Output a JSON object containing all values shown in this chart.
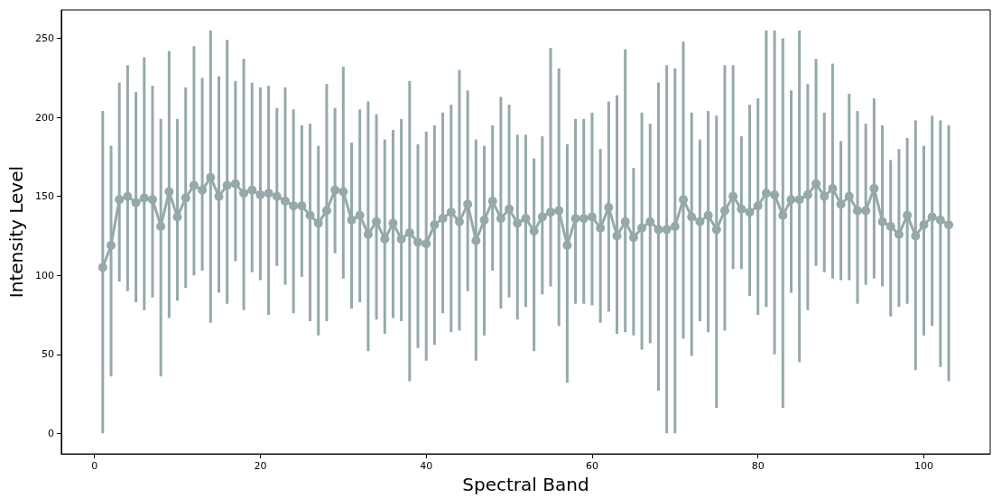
{
  "chart_data": {
    "type": "line",
    "xlabel": "Spectral Band",
    "ylabel": "Intensity Level",
    "x": [
      1,
      2,
      3,
      4,
      5,
      6,
      7,
      8,
      9,
      10,
      11,
      12,
      13,
      14,
      15,
      16,
      17,
      18,
      19,
      20,
      21,
      22,
      23,
      24,
      25,
      26,
      27,
      28,
      29,
      30,
      31,
      32,
      33,
      34,
      35,
      36,
      37,
      38,
      39,
      40,
      41,
      42,
      43,
      44,
      45,
      46,
      47,
      48,
      49,
      50,
      51,
      52,
      53,
      54,
      55,
      56,
      57,
      58,
      59,
      60,
      61,
      62,
      63,
      64,
      65,
      66,
      67,
      68,
      69,
      70,
      71,
      72,
      73,
      74,
      75,
      76,
      77,
      78,
      79,
      80,
      81,
      82,
      83,
      84,
      85,
      86,
      87,
      88,
      89,
      90,
      91,
      92,
      93,
      94,
      95,
      96,
      97,
      98,
      99,
      100,
      101,
      102,
      103
    ],
    "series": [
      {
        "color": "#95a9ab",
        "marker": "circle",
        "line_style": "solid",
        "values": [
          105,
          119,
          148,
          150,
          146,
          149,
          148,
          131,
          153,
          137,
          149,
          157,
          154,
          162,
          150,
          157,
          158,
          152,
          154,
          151,
          152,
          150,
          147,
          144,
          144,
          138,
          133,
          141,
          154,
          153,
          135,
          138,
          126,
          134,
          123,
          133,
          123,
          127,
          121,
          120,
          132,
          136,
          140,
          134,
          145,
          122,
          135,
          147,
          136,
          142,
          133,
          136,
          128,
          137,
          140,
          141,
          119,
          136,
          136,
          137,
          130,
          143,
          125,
          134,
          124,
          130,
          134,
          129,
          129,
          131,
          148,
          137,
          134,
          138,
          129,
          141,
          150,
          142,
          140,
          144,
          152,
          151,
          138,
          148,
          148,
          151,
          158,
          150,
          155,
          145,
          150,
          141,
          141,
          155,
          134,
          131,
          126,
          138,
          125,
          132,
          137,
          135,
          132
        ],
        "errors": [
          [
            0,
            204
          ],
          [
            36,
            182
          ],
          [
            96,
            222
          ],
          [
            90,
            233
          ],
          [
            83,
            216
          ],
          [
            78,
            238
          ],
          [
            86,
            220
          ],
          [
            36,
            199
          ],
          [
            73,
            242
          ],
          [
            84,
            199
          ],
          [
            92,
            219
          ],
          [
            100,
            245
          ],
          [
            103,
            225
          ],
          [
            70,
            255
          ],
          [
            89,
            226
          ],
          [
            82,
            249
          ],
          [
            109,
            223
          ],
          [
            78,
            237
          ],
          [
            102,
            222
          ],
          [
            97,
            219
          ],
          [
            75,
            220
          ],
          [
            106,
            206
          ],
          [
            94,
            219
          ],
          [
            76,
            205
          ],
          [
            99,
            195
          ],
          [
            71,
            196
          ],
          [
            62,
            182
          ],
          [
            71,
            221
          ],
          [
            114,
            206
          ],
          [
            98,
            232
          ],
          [
            79,
            184
          ],
          [
            83,
            205
          ],
          [
            52,
            210
          ],
          [
            72,
            202
          ],
          [
            63,
            186
          ],
          [
            73,
            192
          ],
          [
            71,
            199
          ],
          [
            33,
            223
          ],
          [
            54,
            183
          ],
          [
            46,
            191
          ],
          [
            56,
            195
          ],
          [
            76,
            203
          ],
          [
            64,
            208
          ],
          [
            65,
            230
          ],
          [
            90,
            217
          ],
          [
            46,
            186
          ],
          [
            62,
            182
          ],
          [
            103,
            195
          ],
          [
            79,
            213
          ],
          [
            86,
            208
          ],
          [
            72,
            189
          ],
          [
            80,
            189
          ],
          [
            52,
            174
          ],
          [
            88,
            188
          ],
          [
            93,
            244
          ],
          [
            68,
            231
          ],
          [
            32,
            183
          ],
          [
            82,
            199
          ],
          [
            82,
            199
          ],
          [
            81,
            203
          ],
          [
            70,
            180
          ],
          [
            77,
            210
          ],
          [
            63,
            214
          ],
          [
            64,
            243
          ],
          [
            62,
            168
          ],
          [
            53,
            203
          ],
          [
            57,
            196
          ],
          [
            27,
            222
          ],
          [
            0,
            233
          ],
          [
            0,
            231
          ],
          [
            60,
            248
          ],
          [
            49,
            203
          ],
          [
            71,
            186
          ],
          [
            64,
            204
          ],
          [
            16,
            201
          ],
          [
            65,
            233
          ],
          [
            104,
            233
          ],
          [
            104,
            188
          ],
          [
            87,
            208
          ],
          [
            75,
            212
          ],
          [
            80,
            255
          ],
          [
            50,
            255
          ],
          [
            16,
            250
          ],
          [
            89,
            217
          ],
          [
            45,
            255
          ],
          [
            78,
            221
          ],
          [
            106,
            237
          ],
          [
            102,
            203
          ],
          [
            98,
            234
          ],
          [
            97,
            185
          ],
          [
            97,
            215
          ],
          [
            82,
            204
          ],
          [
            94,
            196
          ],
          [
            98,
            212
          ],
          [
            93,
            195
          ],
          [
            74,
            173
          ],
          [
            80,
            180
          ],
          [
            82,
            187
          ],
          [
            40,
            198
          ],
          [
            62,
            182
          ],
          [
            68,
            201
          ],
          [
            42,
            198
          ],
          [
            33,
            195
          ]
        ]
      }
    ],
    "xlim": [
      -4,
      108
    ],
    "xticks": [
      0,
      20,
      40,
      60,
      80,
      100
    ],
    "ylim": [
      -13,
      268
    ],
    "yticks": [
      0,
      50,
      100,
      150,
      200,
      250
    ]
  }
}
